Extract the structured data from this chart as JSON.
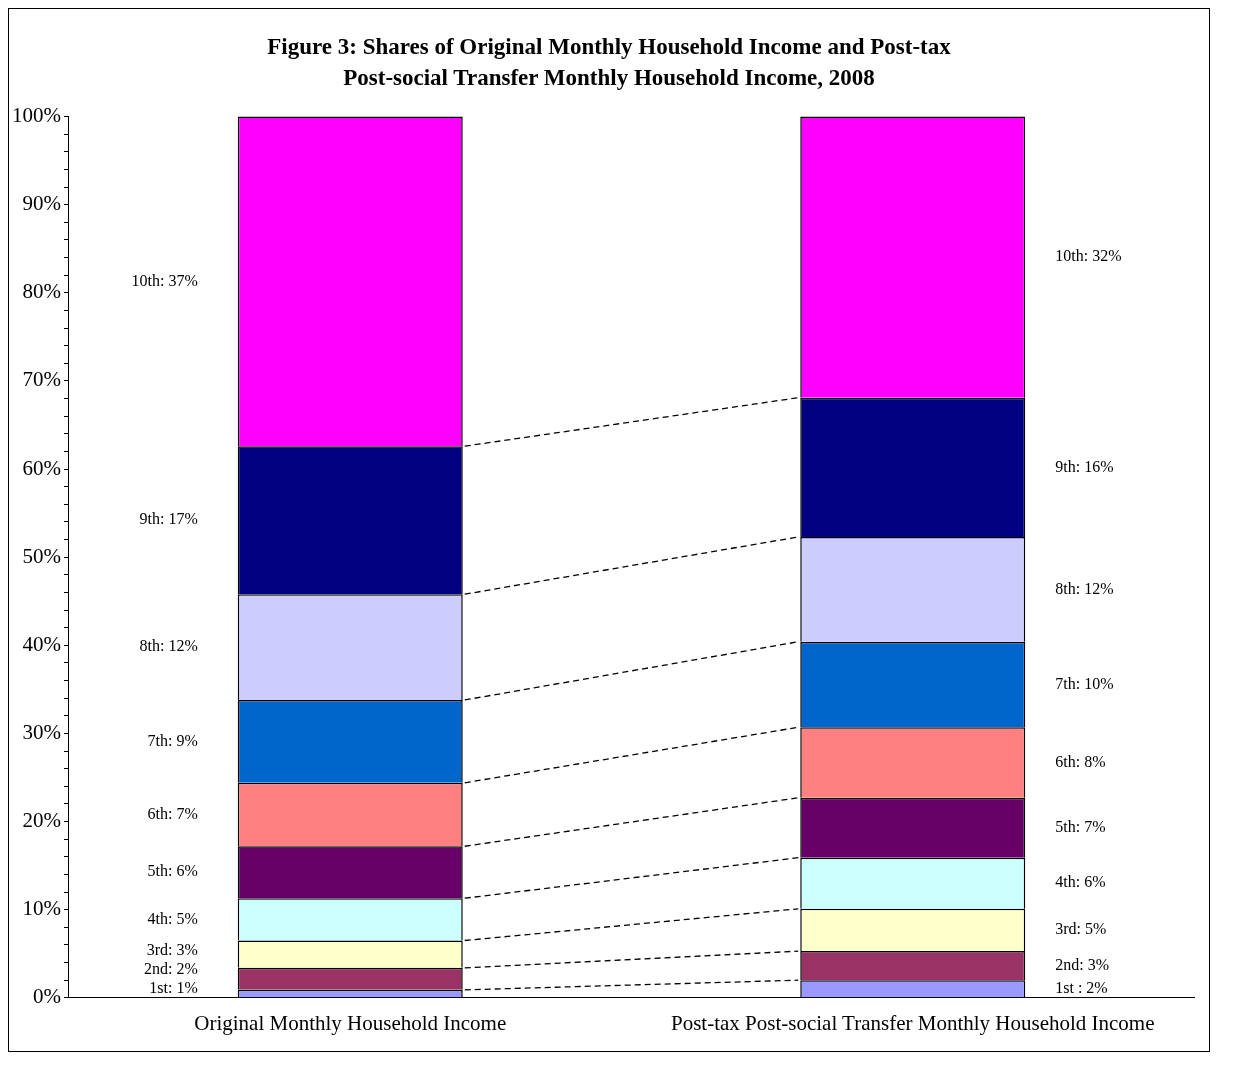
{
  "chart_data": {
    "type": "bar",
    "stacked": true,
    "title": "Figure 3:  Shares of Original Monthly Household Income and Post-tax Post-social Transfer Monthly Household Income, 2008",
    "categories": [
      "Original Monthly Household Income",
      "Post-tax Post-social Transfer Monthly Household Income"
    ],
    "series": [
      {
        "color": "#9999ff",
        "values": [
          0.9,
          2.0
        ]
      },
      {
        "color": "#993366",
        "values": [
          2.5,
          3.3
        ]
      },
      {
        "color": "#ffffcc",
        "values": [
          3.1,
          4.8
        ]
      },
      {
        "color": "#ccffff",
        "values": [
          4.8,
          5.8
        ]
      },
      {
        "color": "#660066",
        "values": [
          5.9,
          6.8
        ]
      },
      {
        "color": "#ff8080",
        "values": [
          7.2,
          8.0
        ]
      },
      {
        "color": "#0066cc",
        "values": [
          9.4,
          9.7
        ]
      },
      {
        "color": "#ccccff",
        "values": [
          12.0,
          11.9
        ]
      },
      {
        "color": "#000080",
        "values": [
          16.8,
          15.8
        ]
      },
      {
        "color": "#ff00ff",
        "values": [
          37.4,
          31.9
        ]
      }
    ],
    "annotations": [
      "1st: 1%",
      "2nd: 2%",
      "3rd: 3%",
      "4th: 5%",
      "5th: 6%",
      "6th: 7%",
      "7th: 9%",
      "8th: 12%",
      "9th: 17%",
      "10th: 37%",
      "1st : 2%",
      "2nd: 3%",
      "3rd: 5%",
      "4th: 6%",
      "5th: 7%",
      "6th: 8%",
      "7th: 10%",
      "8th: 12%",
      "9th: 16%",
      "10th: 32%"
    ],
    "ylim": [
      0,
      100
    ],
    "yticks": [
      {
        "value": 0,
        "label": "0%"
      },
      {
        "value": 2,
        "label": null
      },
      {
        "value": 4,
        "label": null
      },
      {
        "value": 6,
        "label": null
      },
      {
        "value": 8,
        "label": null
      },
      {
        "value": 10,
        "label": "10%"
      },
      {
        "value": 12,
        "label": null
      },
      {
        "value": 14,
        "label": null
      },
      {
        "value": 16,
        "label": null
      },
      {
        "value": 18,
        "label": null
      },
      {
        "value": 20,
        "label": "20%"
      },
      {
        "value": 22,
        "label": null
      },
      {
        "value": 24,
        "label": null
      },
      {
        "value": 26,
        "label": null
      },
      {
        "value": 28,
        "label": null
      },
      {
        "value": 30,
        "label": "30%"
      },
      {
        "value": 32,
        "label": null
      },
      {
        "value": 34,
        "label": null
      },
      {
        "value": 36,
        "label": null
      },
      {
        "value": 38,
        "label": null
      },
      {
        "value": 40,
        "label": "40%"
      },
      {
        "value": 42,
        "label": null
      },
      {
        "value": 44,
        "label": null
      },
      {
        "value": 46,
        "label": null
      },
      {
        "value": 48,
        "label": null
      },
      {
        "value": 50,
        "label": "50%"
      },
      {
        "value": 52,
        "label": null
      },
      {
        "value": 54,
        "label": null
      },
      {
        "value": 56,
        "label": null
      },
      {
        "value": 58,
        "label": null
      },
      {
        "value": 60,
        "label": "60%"
      },
      {
        "value": 62,
        "label": null
      },
      {
        "value": 64,
        "label": null
      },
      {
        "value": 66,
        "label": null
      },
      {
        "value": 68,
        "label": null
      },
      {
        "value": 70,
        "label": "70%"
      },
      {
        "value": 72,
        "label": null
      },
      {
        "value": 74,
        "label": null
      },
      {
        "value": 76,
        "label": null
      },
      {
        "value": 78,
        "label": null
      },
      {
        "value": 80,
        "label": "80%"
      },
      {
        "value": 82,
        "label": null
      },
      {
        "value": 84,
        "label": null
      },
      {
        "value": 86,
        "label": null
      },
      {
        "value": 88,
        "label": null
      },
      {
        "value": 90,
        "label": "90%"
      },
      {
        "value": 92,
        "label": null
      },
      {
        "value": 94,
        "label": null
      },
      {
        "value": 96,
        "label": null
      },
      {
        "value": 98,
        "label": null
      },
      {
        "value": 100,
        "label": "100%"
      }
    ],
    "grid": false,
    "legend": false
  }
}
